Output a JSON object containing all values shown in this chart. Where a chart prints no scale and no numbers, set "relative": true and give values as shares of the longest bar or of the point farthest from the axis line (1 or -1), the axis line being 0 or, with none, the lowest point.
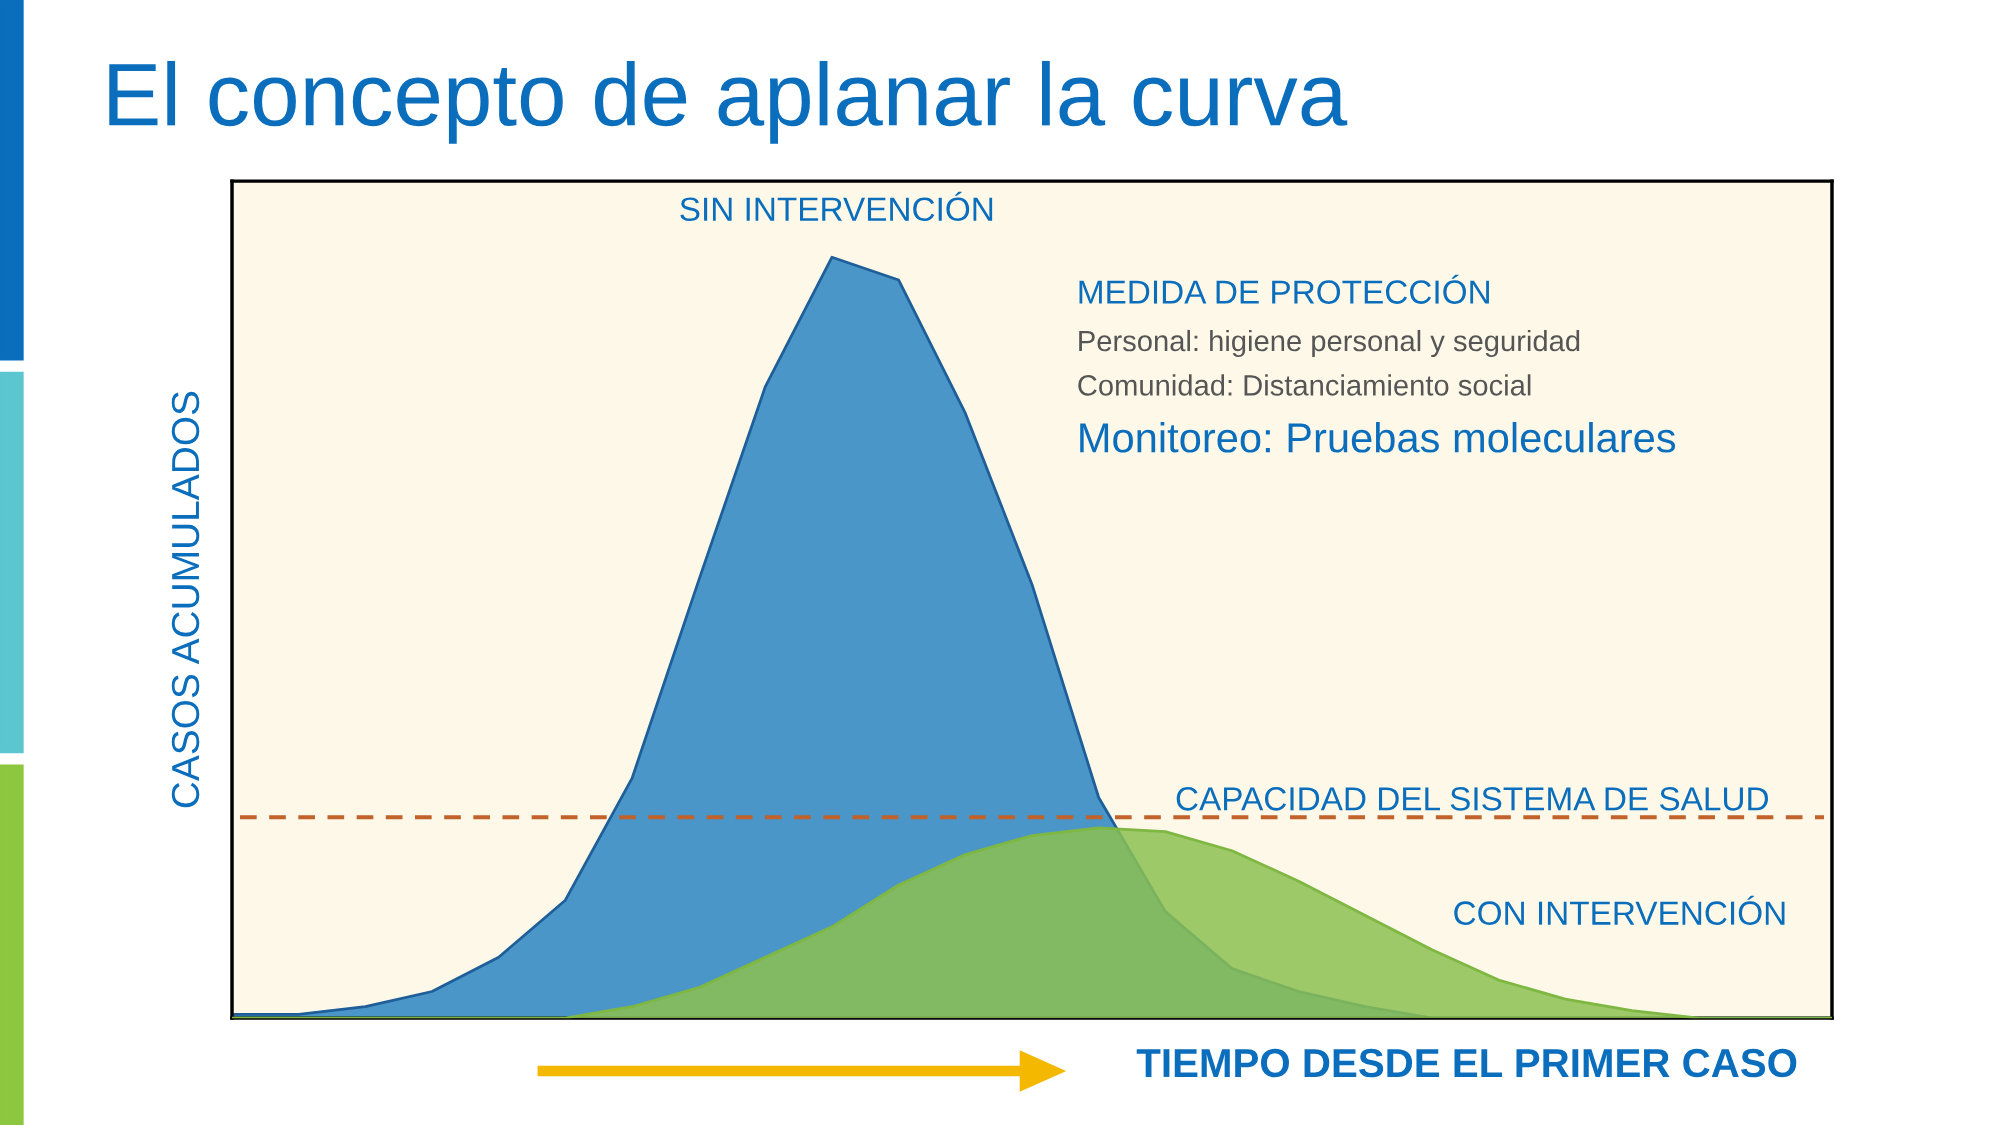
{
  "chart_data": {
    "type": "area",
    "title": "El concepto de aplanar la curva",
    "xlabel": "TIEMPO DESDE EL PRIMER CASO",
    "ylabel": "CASOS ACUMULADOS",
    "relative": true,
    "tick_labels": false,
    "categories": [
      null,
      null,
      null,
      null,
      null,
      null,
      null,
      null,
      null,
      null,
      null,
      null,
      null,
      null,
      null,
      null,
      null,
      null,
      null,
      null,
      null,
      null,
      null,
      null,
      null
    ],
    "series": [
      {
        "name": "SIN INTERVENCIÓN",
        "color": "#4a96c8",
        "values": [
          0.005,
          0.005,
          0.015,
          0.035,
          0.08,
          0.155,
          0.315,
          0.575,
          0.83,
          1.0,
          0.97,
          0.795,
          0.57,
          0.29,
          0.14,
          0.065,
          0.035,
          0.015,
          0.0,
          0.0,
          0.0,
          0.0,
          0.0,
          0.0,
          0.0
        ]
      },
      {
        "name": "CON INTERVENCIÓN",
        "color": "#8cc152",
        "values": [
          0.0,
          0.0,
          0.0,
          0.0,
          0.0,
          0.0,
          0.015,
          0.04,
          0.08,
          0.12,
          0.175,
          0.215,
          0.24,
          0.25,
          0.245,
          0.22,
          0.18,
          0.135,
          0.09,
          0.05,
          0.025,
          0.01,
          0.0,
          0.0,
          0.0
        ]
      }
    ],
    "ref_lines": [
      {
        "axis": "y",
        "value": 0.264,
        "label": "CAPACIDAD DEL SISTEMA DE SALUD",
        "color": "#c0622a",
        "line_style": "dashed"
      }
    ],
    "annotations": [
      "MEDIDA DE PROTECCIÓN",
      "Personal: higiene personal y seguridad",
      "Comunidad: Distanciamiento social",
      "Monitoreo: Pruebas moleculares"
    ]
  }
}
